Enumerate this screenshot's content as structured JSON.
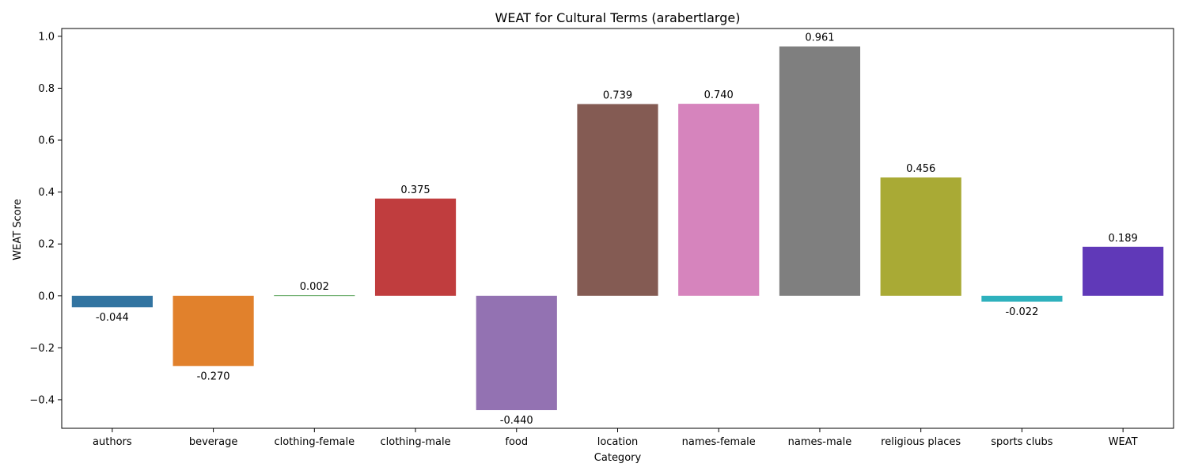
{
  "chart_data": {
    "type": "bar",
    "title": "WEAT for Cultural Terms (arabertlarge)",
    "xlabel": "Category",
    "ylabel": "WEAT Score",
    "categories": [
      "authors",
      "beverage",
      "clothing-female",
      "clothing-male",
      "food",
      "location",
      "names-female",
      "names-male",
      "religious places",
      "sports clubs",
      "WEAT"
    ],
    "values": [
      -0.044,
      -0.27,
      0.002,
      0.375,
      -0.44,
      0.739,
      0.74,
      0.961,
      0.456,
      -0.022,
      0.189
    ],
    "value_labels": [
      "-0.044",
      "-0.270",
      "0.002",
      "0.375",
      "-0.440",
      "0.739",
      "0.740",
      "0.961",
      "0.456",
      "-0.022",
      "0.189"
    ],
    "colors": [
      "#3274a1",
      "#e1812c",
      "#3a923a",
      "#c03d3e",
      "#9372b2",
      "#845b53",
      "#d684bd",
      "#7f7f7f",
      "#a9aa35",
      "#2eb1bd",
      "#6039b8"
    ],
    "yticks": [
      -0.4,
      -0.2,
      0.0,
      0.2,
      0.4,
      0.6,
      0.8,
      1.0
    ],
    "ytick_labels": [
      "−0.4",
      "−0.2",
      "0.0",
      "0.2",
      "0.4",
      "0.6",
      "0.8",
      "1.0"
    ],
    "ylim": [
      -0.51,
      1.03
    ],
    "grid": false,
    "legend": "none"
  }
}
